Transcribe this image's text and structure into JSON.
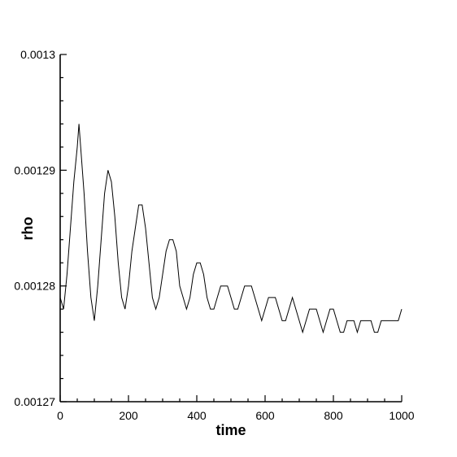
{
  "chart_data": {
    "type": "line",
    "title": "",
    "xlabel": "time",
    "ylabel": "rho",
    "xlim": [
      0,
      1000
    ],
    "ylim": [
      0.00127,
      0.0013
    ],
    "x_ticks": [
      "0",
      "200",
      "400",
      "600",
      "800",
      "1000"
    ],
    "y_ticks": [
      "0.00127",
      "0.00128",
      "0.00129",
      "0.0013"
    ],
    "grid": false,
    "series": [
      {
        "color": "#000000",
        "x": [
          0,
          10,
          20,
          30,
          40,
          50,
          55,
          60,
          70,
          80,
          90,
          100,
          110,
          120,
          130,
          140,
          150,
          160,
          170,
          180,
          190,
          200,
          210,
          220,
          230,
          240,
          250,
          260,
          270,
          280,
          290,
          300,
          310,
          320,
          330,
          340,
          350,
          360,
          370,
          380,
          390,
          400,
          410,
          420,
          430,
          440,
          450,
          460,
          470,
          480,
          490,
          500,
          510,
          520,
          530,
          540,
          550,
          560,
          570,
          580,
          590,
          600,
          610,
          620,
          630,
          640,
          650,
          660,
          670,
          680,
          690,
          700,
          710,
          720,
          730,
          740,
          750,
          760,
          770,
          780,
          790,
          800,
          810,
          820,
          830,
          840,
          850,
          860,
          870,
          880,
          890,
          900,
          910,
          920,
          930,
          940,
          950,
          960,
          970,
          980,
          990,
          1000
        ],
        "y": [
          0.001279,
          0.001278,
          0.001281,
          0.001285,
          0.001289,
          0.001292,
          0.001294,
          0.001292,
          0.001288,
          0.001283,
          0.001279,
          0.001277,
          0.00128,
          0.001284,
          0.001288,
          0.00129,
          0.001289,
          0.001286,
          0.001282,
          0.001279,
          0.001278,
          0.00128,
          0.001283,
          0.001285,
          0.001287,
          0.001287,
          0.001285,
          0.001282,
          0.001279,
          0.001278,
          0.001279,
          0.001281,
          0.001283,
          0.001284,
          0.001284,
          0.001283,
          0.00128,
          0.001279,
          0.001278,
          0.001279,
          0.001281,
          0.001282,
          0.001282,
          0.001281,
          0.001279,
          0.001278,
          0.001278,
          0.001279,
          0.00128,
          0.00128,
          0.00128,
          0.001279,
          0.001278,
          0.001278,
          0.001279,
          0.00128,
          0.00128,
          0.00128,
          0.001279,
          0.001278,
          0.001277,
          0.001278,
          0.001279,
          0.001279,
          0.001279,
          0.001278,
          0.001277,
          0.001277,
          0.001278,
          0.001279,
          0.001278,
          0.001277,
          0.001276,
          0.001277,
          0.001278,
          0.001278,
          0.001278,
          0.001277,
          0.001276,
          0.001277,
          0.001278,
          0.001278,
          0.001277,
          0.001276,
          0.001276,
          0.001277,
          0.001277,
          0.001277,
          0.001276,
          0.001277,
          0.001277,
          0.001277,
          0.001277,
          0.001276,
          0.001276,
          0.001277,
          0.001277,
          0.001277,
          0.001277,
          0.001277,
          0.001277,
          0.001278
        ]
      }
    ]
  }
}
